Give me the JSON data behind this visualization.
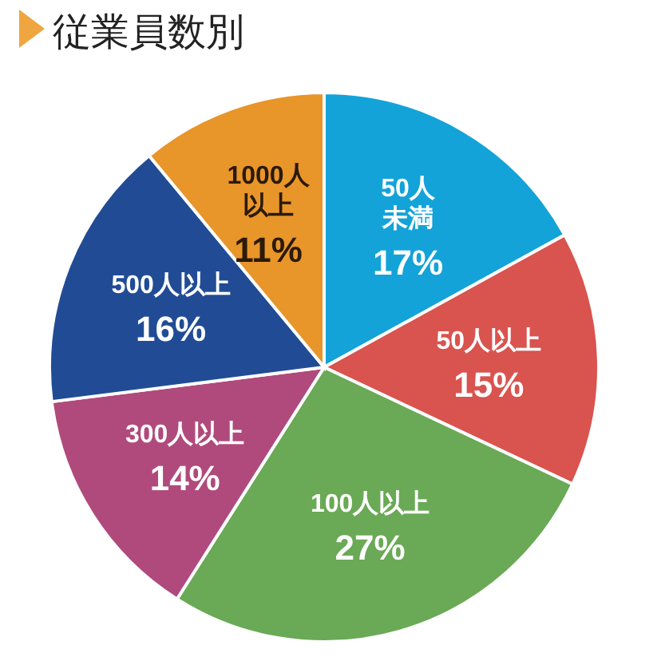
{
  "chart_data": {
    "type": "pie",
    "title": "従業員数別",
    "categories": [
      "50人未満",
      "50人以上",
      "100人以上",
      "300人以上",
      "500人以上",
      "1000人以上"
    ],
    "values": [
      17,
      15,
      27,
      14,
      16,
      11
    ],
    "value_labels": [
      "17%",
      "15%",
      "27%",
      "14%",
      "16%",
      "11%"
    ],
    "colors": [
      "#13a3d8",
      "#d9534f",
      "#6aa955",
      "#b04a7c",
      "#214c95",
      "#e8952a"
    ]
  }
}
